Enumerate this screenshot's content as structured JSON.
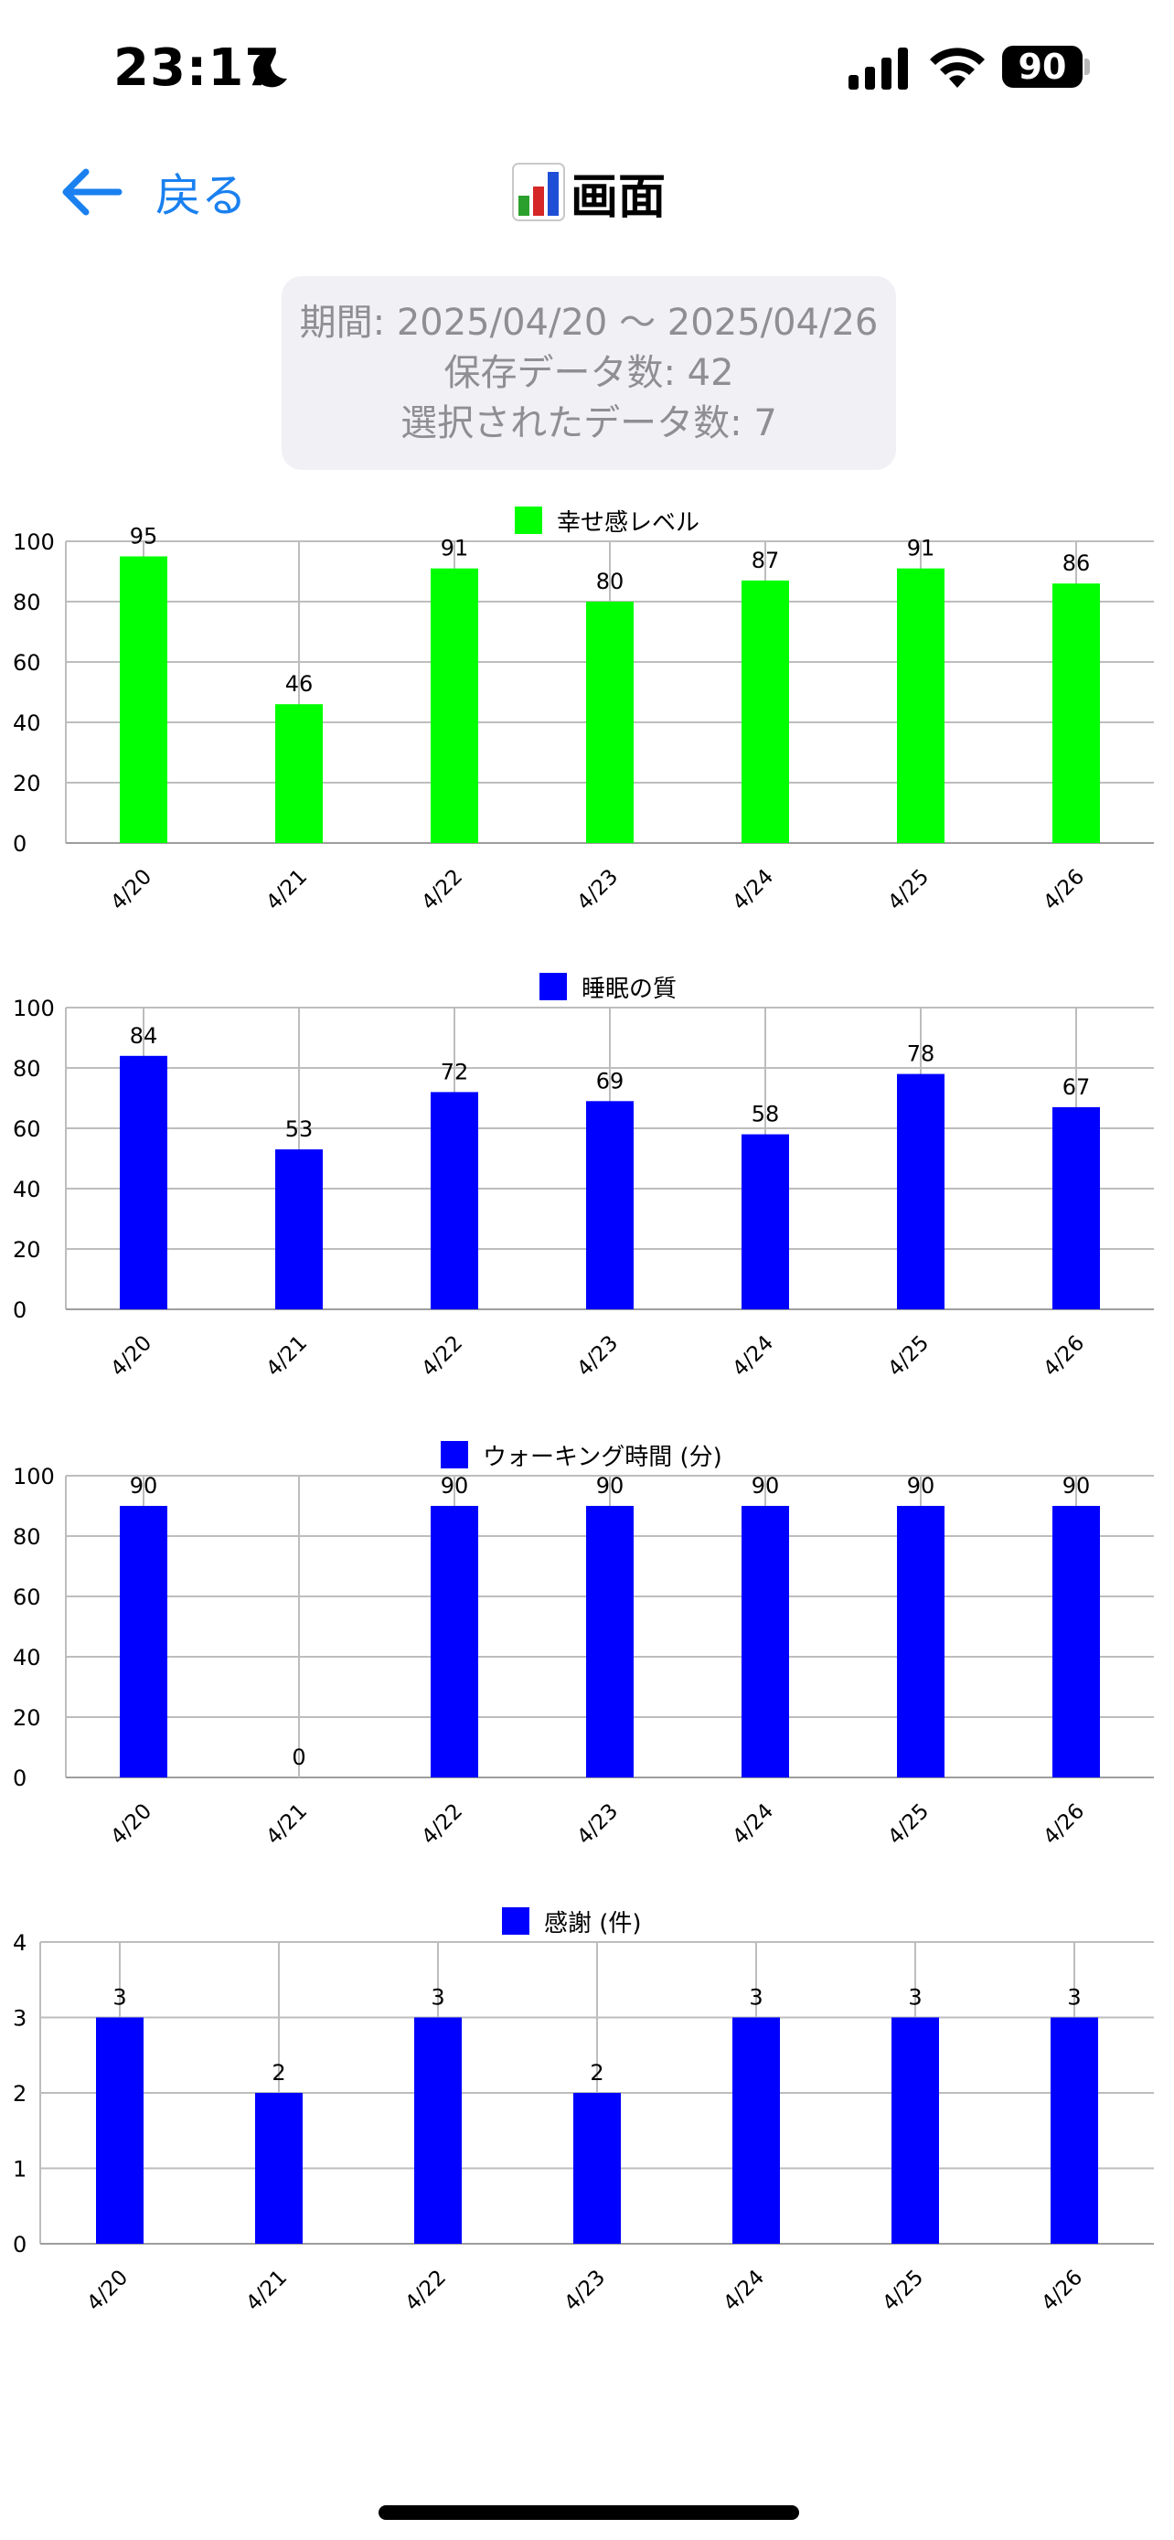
{
  "status_bar": {
    "time": "23:17",
    "battery": "90",
    "icons": [
      "moon-icon",
      "signal-icon",
      "wifi-icon",
      "battery-icon"
    ]
  },
  "nav": {
    "back_label": "戻る",
    "title": "画面",
    "title_icon": "bar-chart-emoji-icon"
  },
  "info": {
    "period": "期間: 2025/04/20 〜 2025/04/26",
    "saved_count": "保存データ数: 42",
    "selected_count": "選択されたデータ数: 7"
  },
  "chart_data": [
    {
      "type": "bar",
      "legend": "幸せ感レベル",
      "color": "#00ff00",
      "categories": [
        "4/20",
        "4/21",
        "4/22",
        "4/23",
        "4/24",
        "4/25",
        "4/26"
      ],
      "values": [
        95,
        46,
        91,
        80,
        87,
        91,
        86
      ],
      "ylim": [
        0,
        100
      ],
      "yticks": [
        0,
        20,
        40,
        60,
        80,
        100
      ],
      "grid": true,
      "legend_position": "top-center"
    },
    {
      "type": "bar",
      "legend": "睡眠の質",
      "color": "#0000ff",
      "categories": [
        "4/20",
        "4/21",
        "4/22",
        "4/23",
        "4/24",
        "4/25",
        "4/26"
      ],
      "values": [
        84,
        53,
        72,
        69,
        58,
        78,
        67
      ],
      "ylim": [
        0,
        100
      ],
      "yticks": [
        0,
        20,
        40,
        60,
        80,
        100
      ],
      "grid": true,
      "legend_position": "top-center"
    },
    {
      "type": "bar",
      "legend": "ウォーキング時間 (分)",
      "color": "#0000ff",
      "categories": [
        "4/20",
        "4/21",
        "4/22",
        "4/23",
        "4/24",
        "4/25",
        "4/26"
      ],
      "values": [
        90,
        0,
        90,
        90,
        90,
        90,
        90
      ],
      "ylim": [
        0,
        100
      ],
      "yticks": [
        0,
        20,
        40,
        60,
        80,
        100
      ],
      "grid": true,
      "legend_position": "top-center"
    },
    {
      "type": "bar",
      "legend": "感謝 (件)",
      "color": "#0000ff",
      "categories": [
        "4/20",
        "4/21",
        "4/22",
        "4/23",
        "4/24",
        "4/25",
        "4/26"
      ],
      "values": [
        3,
        2,
        3,
        2,
        3,
        3,
        3
      ],
      "ylim": [
        0,
        4
      ],
      "yticks": [
        0,
        1,
        2,
        3,
        4
      ],
      "grid": true,
      "legend_position": "top-center"
    }
  ]
}
